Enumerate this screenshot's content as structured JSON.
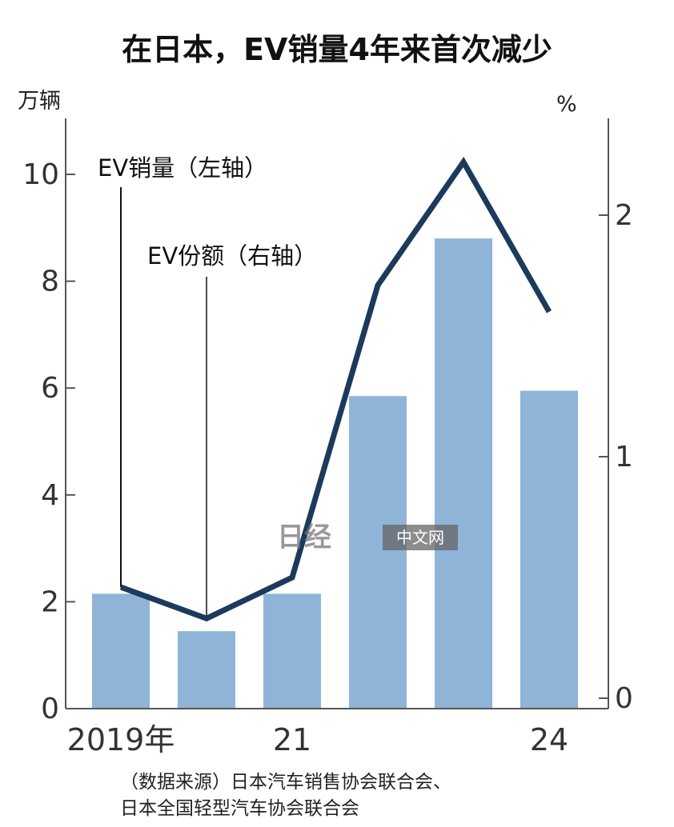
{
  "title": "在日本，EV销量4年来首次减少",
  "source_lines": [
    "（数据来源）日本汽车销售协会联合会、",
    "日本全国轻型汽车协会联合会"
  ],
  "watermark": {
    "logo_text": "日经",
    "label": "中文网"
  },
  "colors": {
    "bar": "#8fb4d8",
    "line": "#1b3a5c",
    "axis": "#555555"
  },
  "chart_data": {
    "type": "bar",
    "categories": [
      "2019",
      "2020",
      "2021",
      "2022",
      "2023",
      "2024"
    ],
    "x_tick_labels": [
      "2019年",
      "",
      "21",
      "",
      "",
      "24"
    ],
    "series": [
      {
        "name": "EV销量（左轴）",
        "type": "bar",
        "axis": "left",
        "values": [
          2.15,
          1.45,
          2.15,
          5.85,
          8.8,
          5.95
        ]
      },
      {
        "name": "EV份额（右轴）",
        "type": "line",
        "axis": "right",
        "values": [
          0.46,
          0.33,
          0.5,
          1.71,
          2.22,
          1.6
        ]
      }
    ],
    "left_axis": {
      "unit": "万辆",
      "range": [
        0,
        11
      ],
      "ticks": [
        0,
        2,
        4,
        6,
        8,
        10
      ]
    },
    "right_axis": {
      "unit": "%",
      "range": [
        0,
        2.4
      ],
      "ticks": [
        0,
        1,
        2
      ]
    },
    "grid": false
  }
}
